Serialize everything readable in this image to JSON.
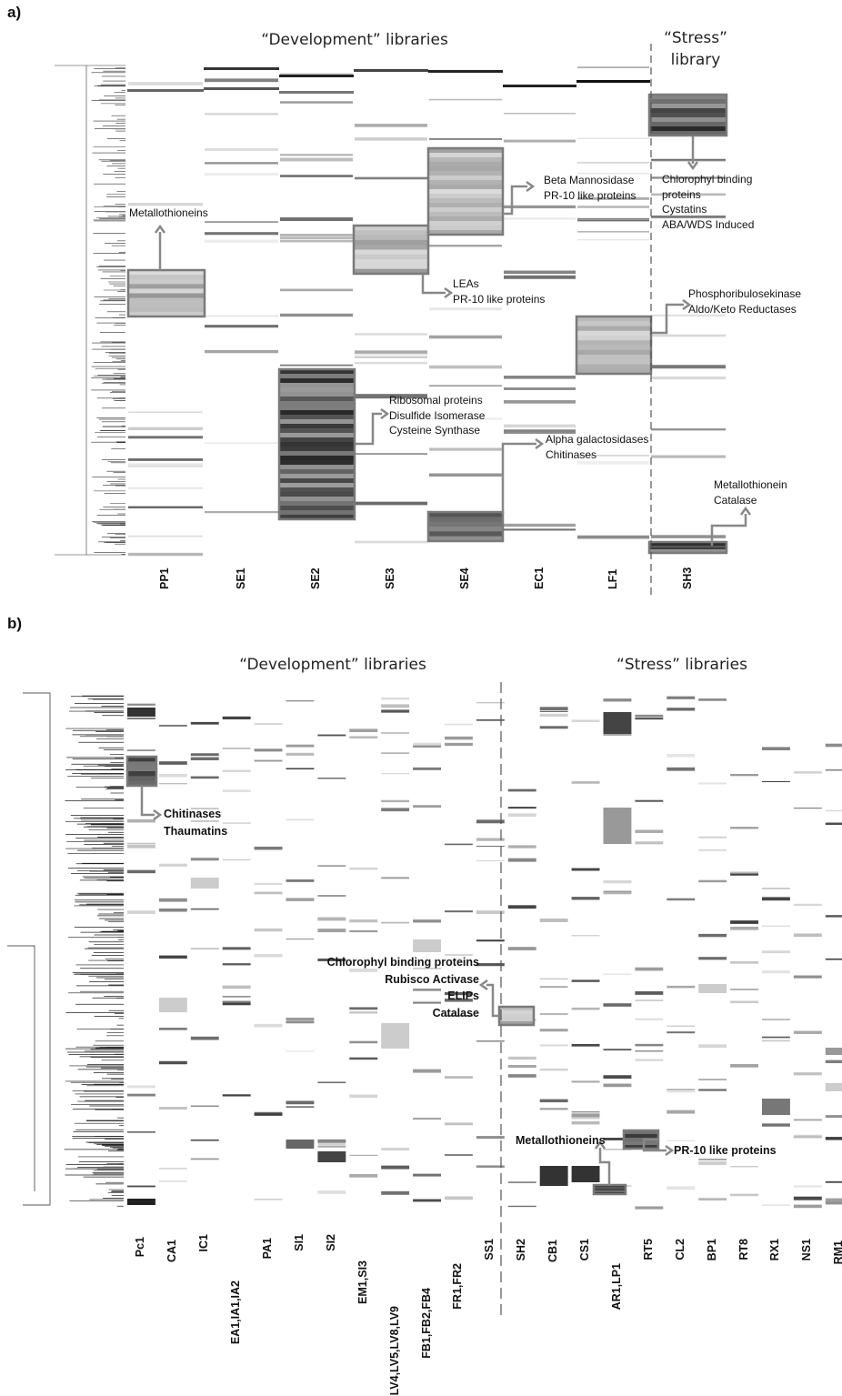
{
  "panels": [
    {
      "letter": "a)",
      "dev_title": "“Development” libraries",
      "stress_title_line1": "“Stress”",
      "stress_title_line2": "library",
      "columns": [
        "PP1",
        "SE1",
        "SE2",
        "SE3",
        "SE4",
        "EC1",
        "LF1",
        "SH3"
      ],
      "annotations": [
        {
          "id": "metallothioneins",
          "lines": [
            "Metallothioneins"
          ]
        },
        {
          "id": "beta-mannosidase",
          "lines": [
            "Beta Mannosidase",
            "PR-10 like proteins"
          ]
        },
        {
          "id": "chlorophyl",
          "lines": [
            "Chlorophyl binding",
            "proteins",
            "Cystatins",
            "ABA/WDS Induced"
          ]
        },
        {
          "id": "leas",
          "lines": [
            "LEAs",
            "PR-10 like proteins"
          ]
        },
        {
          "id": "phosphoribulosekinase",
          "lines": [
            "Phosphoribulosekinase",
            "Aldo/Keto Reductases"
          ]
        },
        {
          "id": "ribosomal",
          "lines": [
            "Ribosomal proteins",
            "Disulfide Isomerase",
            "Cysteine Synthase"
          ]
        },
        {
          "id": "alpha-galactosidases",
          "lines": [
            "Alpha galactosidases",
            "Chitinases"
          ]
        },
        {
          "id": "metallothionein-catalase",
          "lines": [
            "Metallothionein",
            "Catalase"
          ]
        }
      ]
    },
    {
      "letter": "b)",
      "dev_title": "“Development” libraries",
      "stress_title": "“Stress” libraries",
      "columns": [
        "Pc1",
        "CA1",
        "IC1",
        "EA1,IA1,IA2",
        "PA1",
        "SI1",
        "SI2",
        "EM1,SI3",
        "LV4,LV5,LV8,LV9",
        "FB1,FB2,FB4",
        "FR1,FR2",
        "SS1",
        "SH2",
        "CB1",
        "CS1",
        "AR1,LP1",
        "RT5",
        "CL2",
        "BP1",
        "RT8",
        "RX1",
        "NS1",
        "RM1"
      ],
      "annotations": [
        {
          "id": "chitinases",
          "lines": [
            "Chitinases",
            "Thaumatins"
          ]
        },
        {
          "id": "chlorophyl-b",
          "lines": [
            "Chlorophyl binding proteins",
            "Rubisco Activase",
            "ELIPs",
            "Catalase"
          ]
        },
        {
          "id": "metallothioneins-b",
          "lines": [
            "Metallothioneins"
          ]
        },
        {
          "id": "pr10-b",
          "lines": [
            "PR-10 like proteins"
          ]
        }
      ]
    }
  ],
  "chart_data": [
    {
      "type": "heatmap",
      "title": "",
      "x_categories": [
        "PP1",
        "SE1",
        "SE2",
        "SE3",
        "SE4",
        "EC1",
        "LF1",
        "SH3"
      ],
      "groups": [
        {
          "name": "“Development” libraries",
          "columns": [
            "PP1",
            "SE1",
            "SE2",
            "SE3",
            "SE4",
            "EC1",
            "LF1"
          ]
        },
        {
          "name": "“Stress” library",
          "columns": [
            "SH3"
          ]
        }
      ],
      "highlighted_clusters": [
        {
          "column": "PP1",
          "genes": [
            "Metallothioneins"
          ]
        },
        {
          "column": "SE2",
          "genes": [
            "Ribosomal proteins",
            "Disulfide Isomerase",
            "Cysteine Synthase"
          ]
        },
        {
          "column": "SE3",
          "genes": [
            "LEAs",
            "PR-10 like proteins"
          ]
        },
        {
          "column": "SE4",
          "genes": [
            "Beta Mannosidase",
            "PR-10 like proteins"
          ]
        },
        {
          "column": "SE4",
          "genes": [
            "Alpha galactosidases",
            "Chitinases"
          ]
        },
        {
          "column": "LF1",
          "genes": [
            "Phosphoribulosekinase",
            "Aldo/Keto Reductases"
          ]
        },
        {
          "column": "SH3",
          "genes": [
            "Chlorophyl binding",
            "proteins",
            "Cystatins",
            "ABA/WDS Induced"
          ]
        },
        {
          "column": "SH3",
          "genes": [
            "Metallothionein",
            "Catalase"
          ]
        }
      ],
      "dendrogram": true,
      "colormap": "grayscale"
    },
    {
      "type": "heatmap",
      "title": "",
      "x_categories": [
        "Pc1",
        "CA1",
        "IC1",
        "EA1,IA1,IA2",
        "PA1",
        "SI1",
        "SI2",
        "EM1,SI3",
        "LV4,LV5,LV8,LV9",
        "FB1,FB2,FB4",
        "FR1,FR2",
        "SS1",
        "SH2",
        "CB1",
        "CS1",
        "AR1,LP1",
        "RT5",
        "CL2",
        "BP1",
        "RT8",
        "RX1",
        "NS1",
        "RM1"
      ],
      "groups": [
        {
          "name": "“Development” libraries",
          "columns": [
            "Pc1",
            "CA1",
            "IC1",
            "EA1,IA1,IA2",
            "PA1",
            "SI1",
            "SI2",
            "EM1,SI3",
            "LV4,LV5,LV8,LV9",
            "FB1,FB2,FB4",
            "FR1,FR2",
            "SS1"
          ]
        },
        {
          "name": "“Stress” libraries",
          "columns": [
            "SH2",
            "CB1",
            "CS1",
            "AR1,LP1",
            "RT5",
            "CL2",
            "BP1",
            "RT8",
            "RX1",
            "NS1",
            "RM1"
          ]
        }
      ],
      "highlighted_clusters": [
        {
          "column": "Pc1",
          "genes": [
            "Chitinases",
            "Thaumatins"
          ]
        },
        {
          "column": "SH2",
          "genes": [
            "Chlorophyl binding proteins",
            "Rubisco Activase",
            "ELIPs",
            "Catalase"
          ]
        },
        {
          "column": "AR1,LP1",
          "genes": [
            "Metallothioneins"
          ]
        },
        {
          "column": "RT5",
          "genes": [
            "PR-10 like proteins"
          ]
        }
      ],
      "dendrogram": true,
      "colormap": "grayscale"
    }
  ]
}
